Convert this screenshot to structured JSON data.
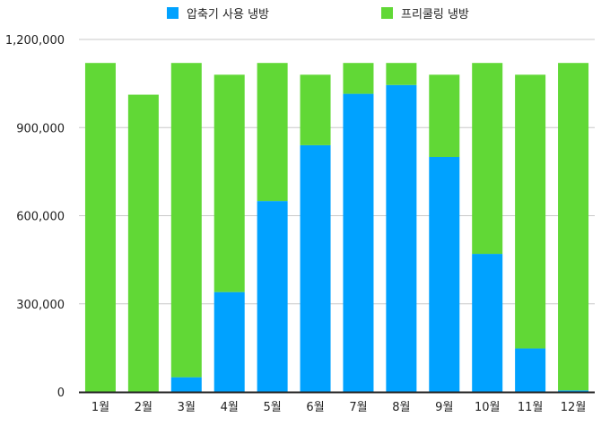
{
  "chart_data": {
    "type": "bar",
    "stacked": true,
    "title": "",
    "xlabel": "",
    "ylabel": "",
    "categories": [
      "1월",
      "2월",
      "3월",
      "4월",
      "5월",
      "6월",
      "7월",
      "8월",
      "9월",
      "10월",
      "11월",
      "12월"
    ],
    "series": [
      {
        "name": "압축기 사용 냉방",
        "color": "#00A2FF",
        "values": [
          0,
          0,
          50000,
          340000,
          650000,
          840000,
          1015000,
          1045000,
          800000,
          470000,
          148000,
          5000
        ]
      },
      {
        "name": "프리쿨링 냉방",
        "color": "#61D836",
        "values": [
          1120000,
          1012000,
          1070000,
          740000,
          470000,
          240000,
          105000,
          75000,
          280000,
          650000,
          932000,
          1115000
        ]
      }
    ],
    "ylim": [
      0,
      1200000
    ],
    "yticks": [
      "0",
      "300,000",
      "600,000",
      "900,000",
      "1,200,000"
    ],
    "ytick_values": [
      0,
      300000,
      600000,
      900000,
      1200000
    ],
    "grid": true,
    "legend": "top-center"
  }
}
